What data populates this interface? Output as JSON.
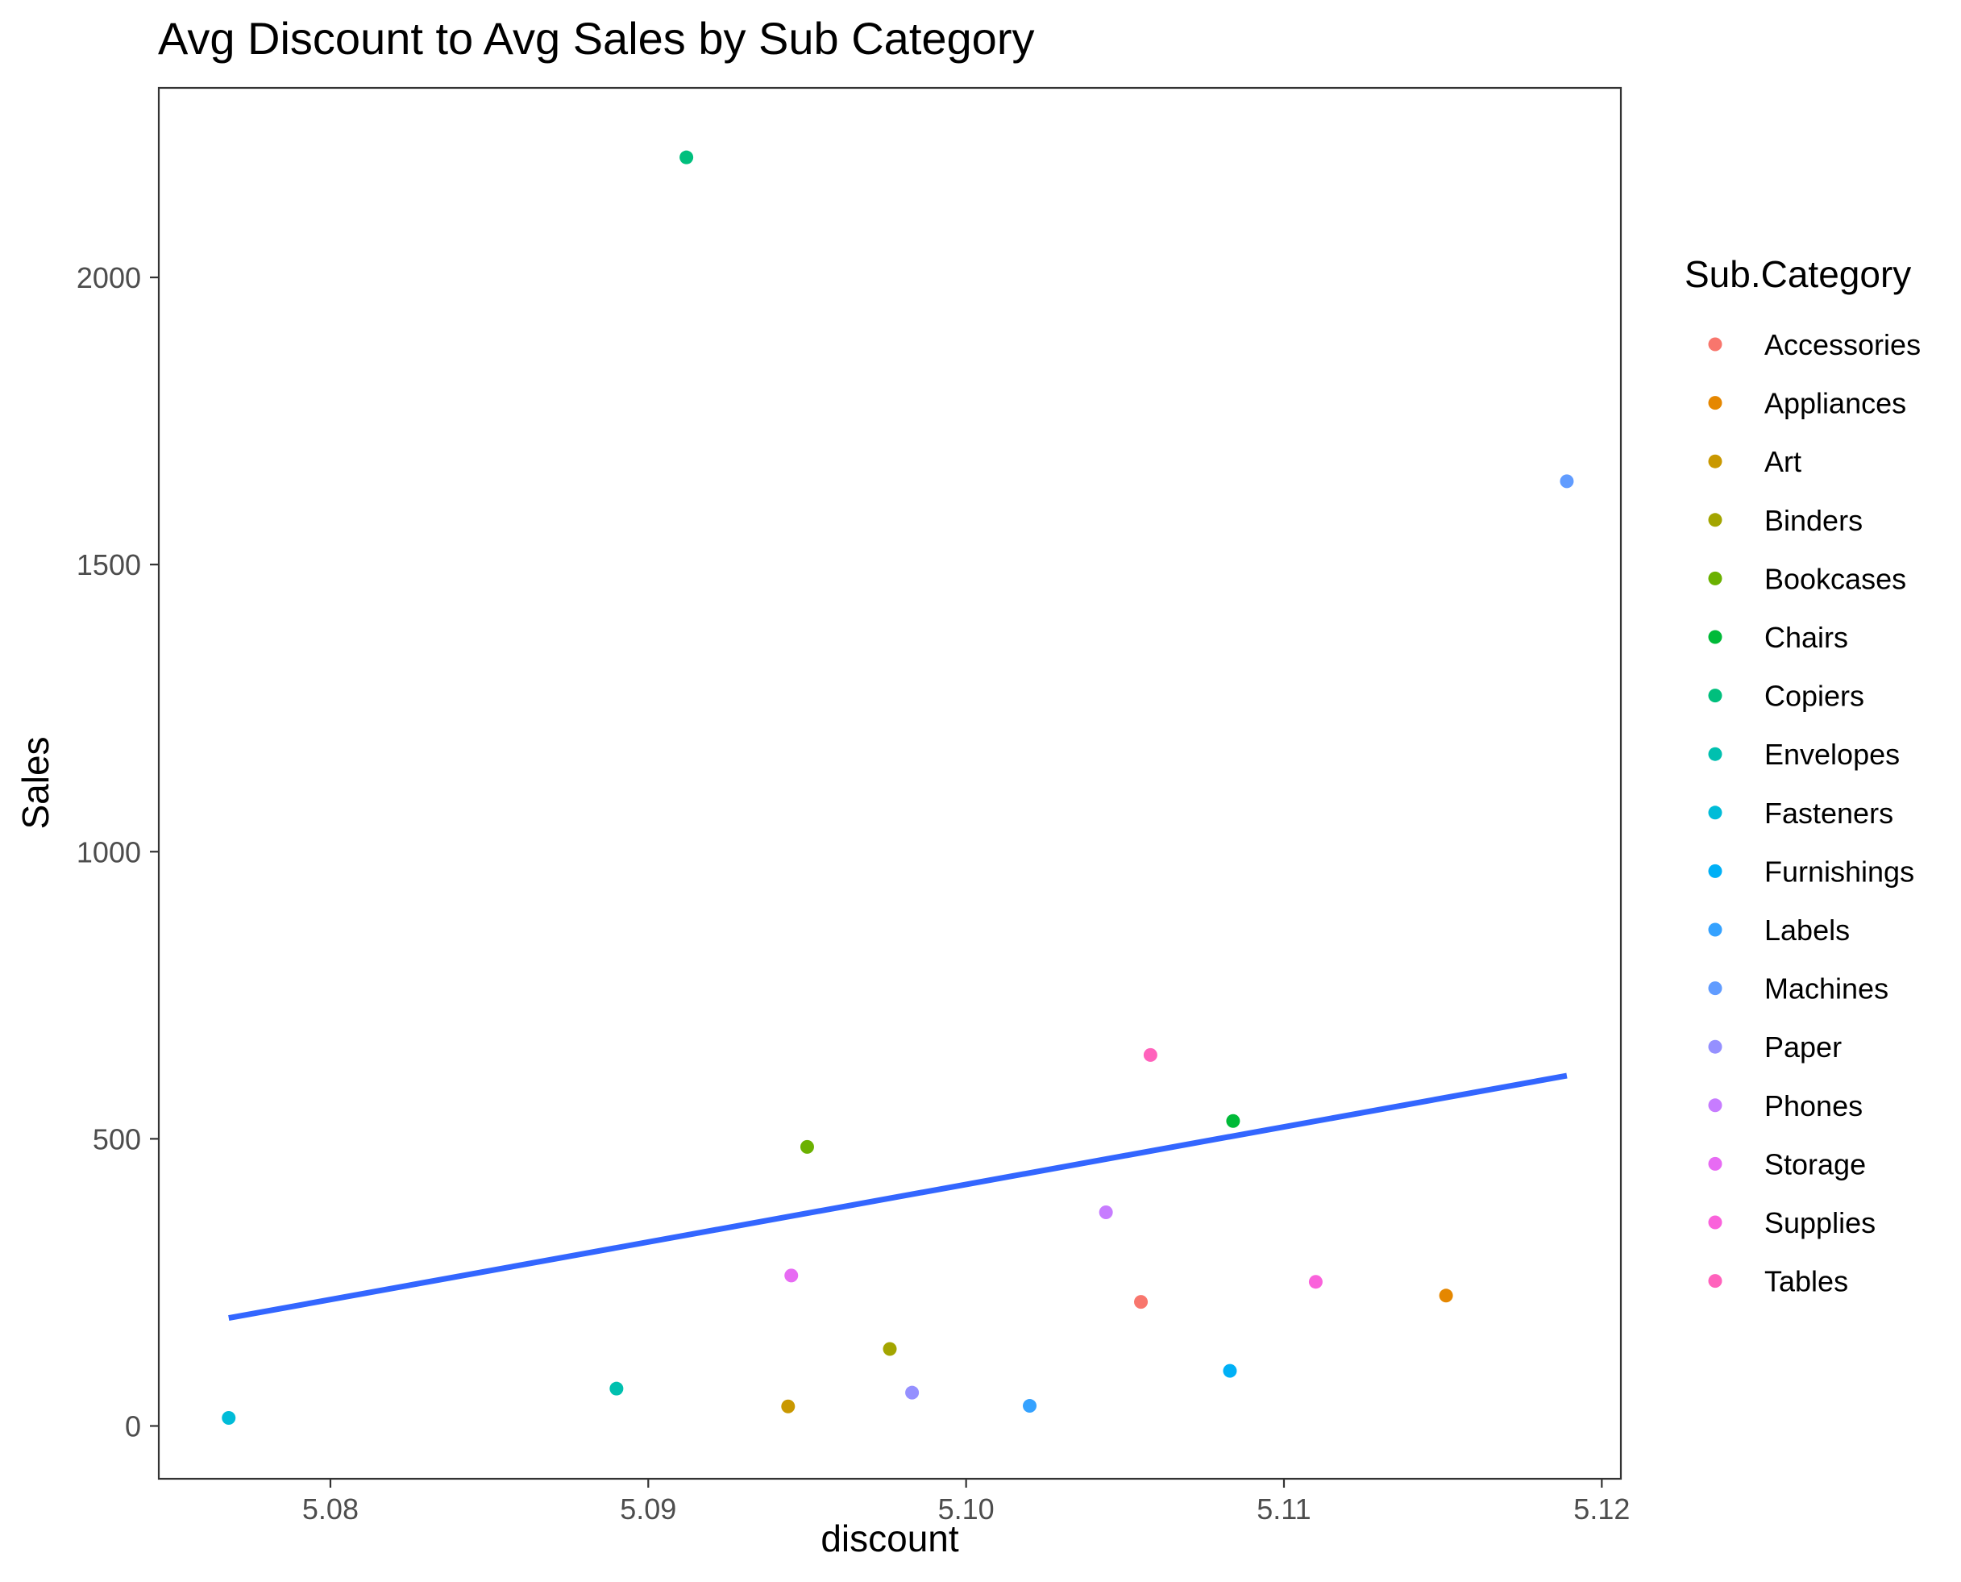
{
  "chart_data": {
    "type": "scatter",
    "title": "Avg Discount to Avg Sales by Sub Category",
    "xlabel": "discount",
    "ylabel": "Sales",
    "xlim": [
      5.0746,
      5.1206
    ],
    "ylim": [
      -92,
      2330
    ],
    "xticks": [
      5.08,
      5.09,
      5.1,
      5.11,
      5.12
    ],
    "xtick_labels": [
      "5.08",
      "5.09",
      "5.10",
      "5.11",
      "5.12"
    ],
    "yticks": [
      0,
      500,
      1000,
      1500,
      2000
    ],
    "ytick_labels": [
      "0",
      "500",
      "1000",
      "1500",
      "2000"
    ],
    "grid": false,
    "legend": {
      "title": "Sub.Category",
      "position": "right"
    },
    "series": [
      {
        "name": "Accessories",
        "color": "#F8766D",
        "x": 5.1055,
        "y": 216
      },
      {
        "name": "Appliances",
        "color": "#E58700",
        "x": 5.1151,
        "y": 227
      },
      {
        "name": "Art",
        "color": "#C99800",
        "x": 5.0944,
        "y": 34
      },
      {
        "name": "Binders",
        "color": "#A3A500",
        "x": 5.0976,
        "y": 134
      },
      {
        "name": "Bookcases",
        "color": "#6BB100",
        "x": 5.095,
        "y": 486
      },
      {
        "name": "Chairs",
        "color": "#00BA38",
        "x": 5.1084,
        "y": 531
      },
      {
        "name": "Copiers",
        "color": "#00BF7D",
        "x": 5.0912,
        "y": 2209
      },
      {
        "name": "Envelopes",
        "color": "#00C0AF",
        "x": 5.089,
        "y": 65
      },
      {
        "name": "Fasteners",
        "color": "#00BCD8",
        "x": 5.0768,
        "y": 14
      },
      {
        "name": "Furnishings",
        "color": "#00B0F6",
        "x": 5.1083,
        "y": 96
      },
      {
        "name": "Labels",
        "color": "#35A2FF",
        "x": 5.102,
        "y": 35
      },
      {
        "name": "Machines",
        "color": "#619CFF",
        "x": 5.1189,
        "y": 1645
      },
      {
        "name": "Paper",
        "color": "#9590FF",
        "x": 5.0983,
        "y": 58
      },
      {
        "name": "Phones",
        "color": "#C77CFF",
        "x": 5.1044,
        "y": 372
      },
      {
        "name": "Storage",
        "color": "#E76BF3",
        "x": 5.0945,
        "y": 262
      },
      {
        "name": "Supplies",
        "color": "#FA62DB",
        "x": 5.111,
        "y": 251
      },
      {
        "name": "Tables",
        "color": "#FF62BC",
        "x": 5.1058,
        "y": 646
      }
    ],
    "trend_line": {
      "type": "linear",
      "color": "#3366FF",
      "x": [
        5.0768,
        5.1189
      ],
      "y": [
        188,
        610
      ]
    }
  }
}
